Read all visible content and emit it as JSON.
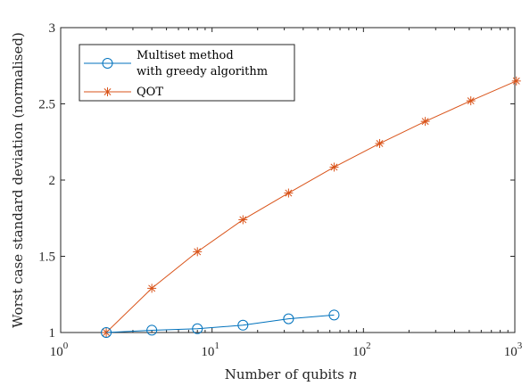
{
  "chart_data": {
    "type": "line",
    "xlabel": "Number of qubits",
    "xlabel_var": "n",
    "ylabel": "Worst case standard deviation (normalised)",
    "x_scale": "log",
    "xlim": [
      1,
      1000
    ],
    "ylim": [
      1,
      3
    ],
    "x_ticks": [
      {
        "value": 1,
        "base": "10",
        "exp": "0"
      },
      {
        "value": 10,
        "base": "10",
        "exp": "1"
      },
      {
        "value": 100,
        "base": "10",
        "exp": "2"
      },
      {
        "value": 1000,
        "base": "10",
        "exp": "3"
      }
    ],
    "y_ticks": [
      {
        "value": 1,
        "label": "1"
      },
      {
        "value": 1.5,
        "label": "1.5"
      },
      {
        "value": 2,
        "label": "2"
      },
      {
        "value": 2.5,
        "label": "2.5"
      },
      {
        "value": 3,
        "label": "3"
      }
    ],
    "grid": false,
    "legend_position": "top-left",
    "series": [
      {
        "name_lines": [
          "Multiset method",
          "with greedy algorithm"
        ],
        "color": "#0072bd",
        "marker": "circle",
        "x": [
          2,
          4,
          8,
          16,
          32,
          64
        ],
        "y": [
          1.0,
          1.015,
          1.025,
          1.048,
          1.09,
          1.115
        ]
      },
      {
        "name_lines": [
          "QOT"
        ],
        "color": "#d95319",
        "marker": "asterisk",
        "x": [
          2,
          4,
          8,
          16,
          32,
          64,
          128,
          256,
          512,
          1024
        ],
        "y": [
          1.0,
          1.29,
          1.53,
          1.74,
          1.915,
          2.085,
          2.24,
          2.385,
          2.52,
          2.65
        ]
      }
    ]
  }
}
